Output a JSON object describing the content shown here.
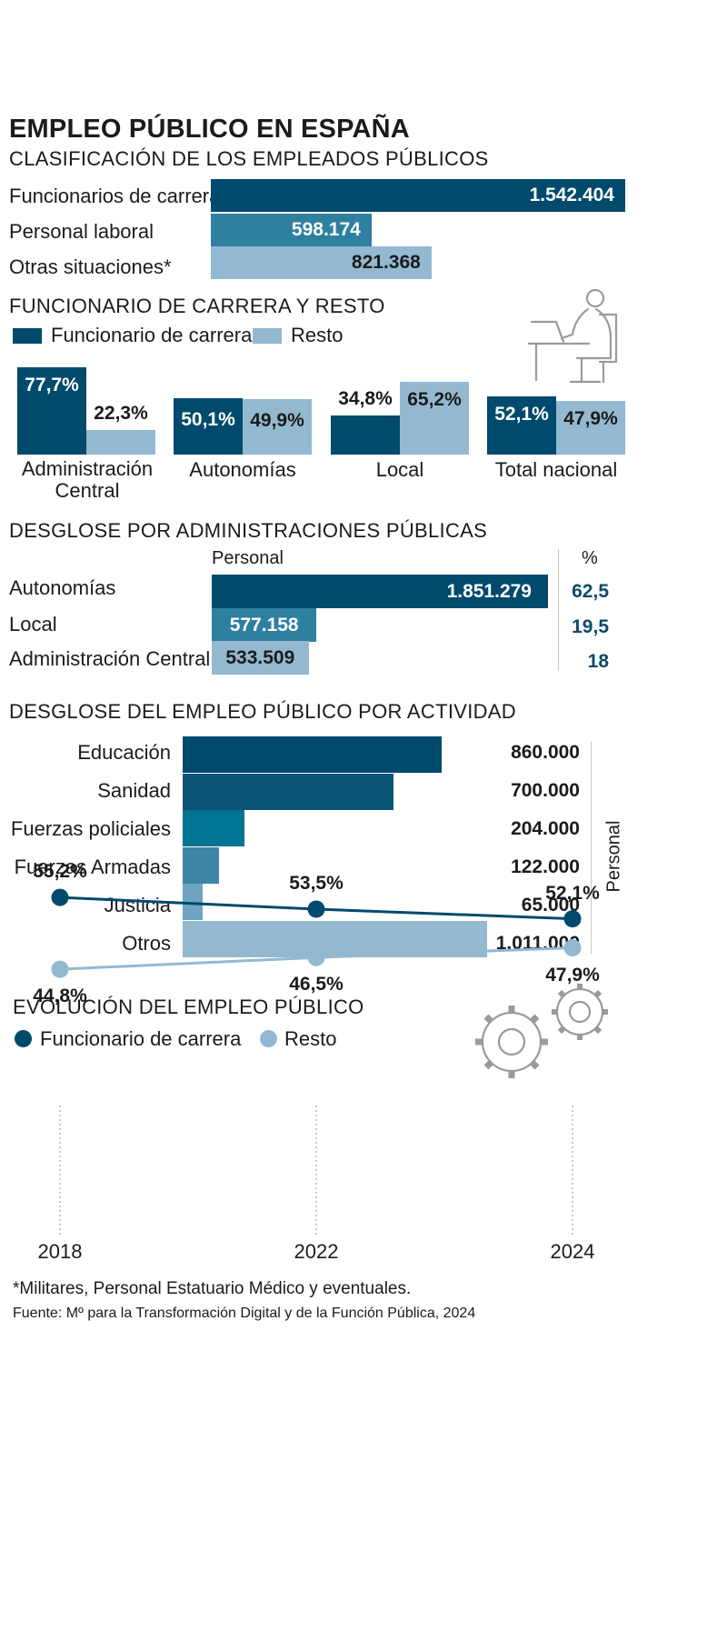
{
  "title": "EMPLEO PÚBLICO EN ESPAÑA",
  "colors": {
    "navy": "#004a6d",
    "steel": "#2f7fa0",
    "light": "#93b9d0",
    "teal": "#007492",
    "mid": "#3f85a6",
    "pale": "#6ea5c2",
    "icon_gray": "#9a9a9a"
  },
  "section1": {
    "title": "CLASIFICACIÓN DE LOS EMPLEADOS PÚBLICOS",
    "chart_data": {
      "type": "bar",
      "orientation": "horizontal",
      "categories": [
        "Funcionarios de carrera",
        "Personal laboral",
        "Otras situaciones*"
      ],
      "values": [
        1542404,
        598174,
        821368
      ],
      "labels": [
        "1.542.404",
        "598.174",
        "821.368"
      ]
    }
  },
  "section2": {
    "title": "FUNCIONARIO DE CARRERA Y RESTO",
    "icon": "person-at-desk-icon",
    "legend": [
      "Funcionario de carrera",
      "Resto"
    ],
    "chart_data": {
      "type": "bar",
      "categories": [
        "Administración Central",
        "Autonomías",
        "Local",
        "Total nacional"
      ],
      "category_lines": [
        [
          "Administración",
          "Central"
        ],
        [
          "Autonomías"
        ],
        [
          "Local"
        ],
        [
          "Total nacional"
        ]
      ],
      "series": [
        {
          "name": "Funcionario de carrera",
          "values": [
            77.7,
            50.1,
            34.8,
            52.1
          ],
          "labels": [
            "77,7%",
            "50,1%",
            "34,8%",
            "52,1%"
          ]
        },
        {
          "name": "Resto",
          "values": [
            22.3,
            49.9,
            65.2,
            47.9
          ],
          "labels": [
            "22,3%",
            "49,9%",
            "65,2%",
            "47,9%"
          ]
        }
      ]
    }
  },
  "section3": {
    "title": "DESGLOSE POR ADMINISTRACIONES PÚBLICAS",
    "col_personal": "Personal",
    "col_pct": "%",
    "chart_data": {
      "type": "bar",
      "orientation": "horizontal",
      "categories": [
        "Autonomías",
        "Local",
        "Administración Central"
      ],
      "values": [
        1851279,
        577158,
        533509
      ],
      "labels": [
        "1.851.279",
        "577.158",
        "533.509"
      ],
      "percent_values": [
        62.5,
        19.5,
        18
      ],
      "percent_labels": [
        "62,5",
        "19,5",
        "18"
      ]
    }
  },
  "section4": {
    "title": "DESGLOSE DEL EMPLEO PÚBLICO POR ACTIVIDAD",
    "axis_label": "Personal",
    "chart_data": {
      "type": "bar",
      "orientation": "horizontal",
      "categories": [
        "Educación",
        "Sanidad",
        "Fuerzas policiales",
        "Fuerzas Armadas",
        "Justicia",
        "Otros"
      ],
      "values": [
        860000,
        700000,
        204000,
        122000,
        65000,
        1011000
      ],
      "labels": [
        "860.000",
        "700.000",
        "204.000",
        "122.000",
        "65.000",
        "1.011.000"
      ]
    }
  },
  "section5": {
    "title": "EVOLUCIÓN DEL EMPLEO PÚBLICO",
    "icon": "gears-icon",
    "legend": [
      "Funcionario de carrera",
      "Resto"
    ],
    "chart_data": {
      "type": "line",
      "x": [
        "2018",
        "2022",
        "2024"
      ],
      "series": [
        {
          "name": "Funcionario de carrera",
          "values": [
            55.2,
            53.5,
            52.1
          ],
          "labels": [
            "55,2%",
            "53,5%",
            "52,1%"
          ]
        },
        {
          "name": "Resto",
          "values": [
            44.8,
            46.5,
            47.9
          ],
          "labels": [
            "44,8%",
            "46,5%",
            "47,9%"
          ]
        }
      ]
    }
  },
  "footnote": "*Militares, Personal Estatuario Médico y eventuales.",
  "source": "Fuente: Mº para la Transformación Digital y de la Función Pública, 2024"
}
